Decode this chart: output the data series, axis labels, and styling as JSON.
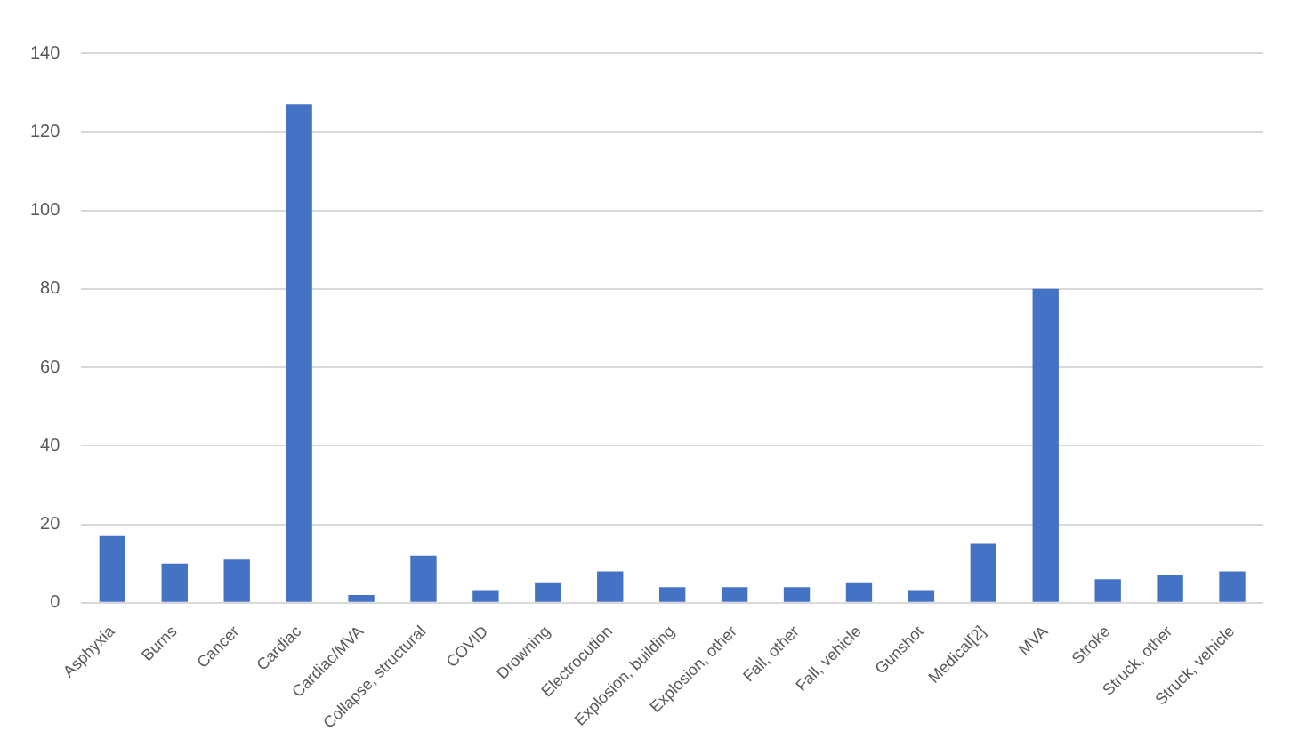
{
  "chart_data": {
    "type": "bar",
    "categories": [
      "Asphyxia",
      "Burns",
      "Cancer",
      "Cardiac",
      "Cardiac/MVA",
      "Collapse, structural",
      "COVID",
      "Drowning",
      "Electrocution",
      "Explosion, building",
      "Explosion, other",
      "Fall, other",
      "Fall, vehicle",
      "Gunshot",
      "Medical[2]",
      "MVA",
      "Stroke",
      "Struck, other",
      "Struck, vehicle"
    ],
    "values": [
      17,
      10,
      11,
      127,
      2,
      12,
      3,
      5,
      8,
      4,
      4,
      4,
      5,
      3,
      15,
      80,
      6,
      7,
      8
    ],
    "color": "#4472c4",
    "ylim": [
      0,
      140
    ],
    "yticks": [
      0,
      20,
      40,
      60,
      80,
      100,
      120,
      140
    ],
    "grid": "y",
    "legend": false
  }
}
